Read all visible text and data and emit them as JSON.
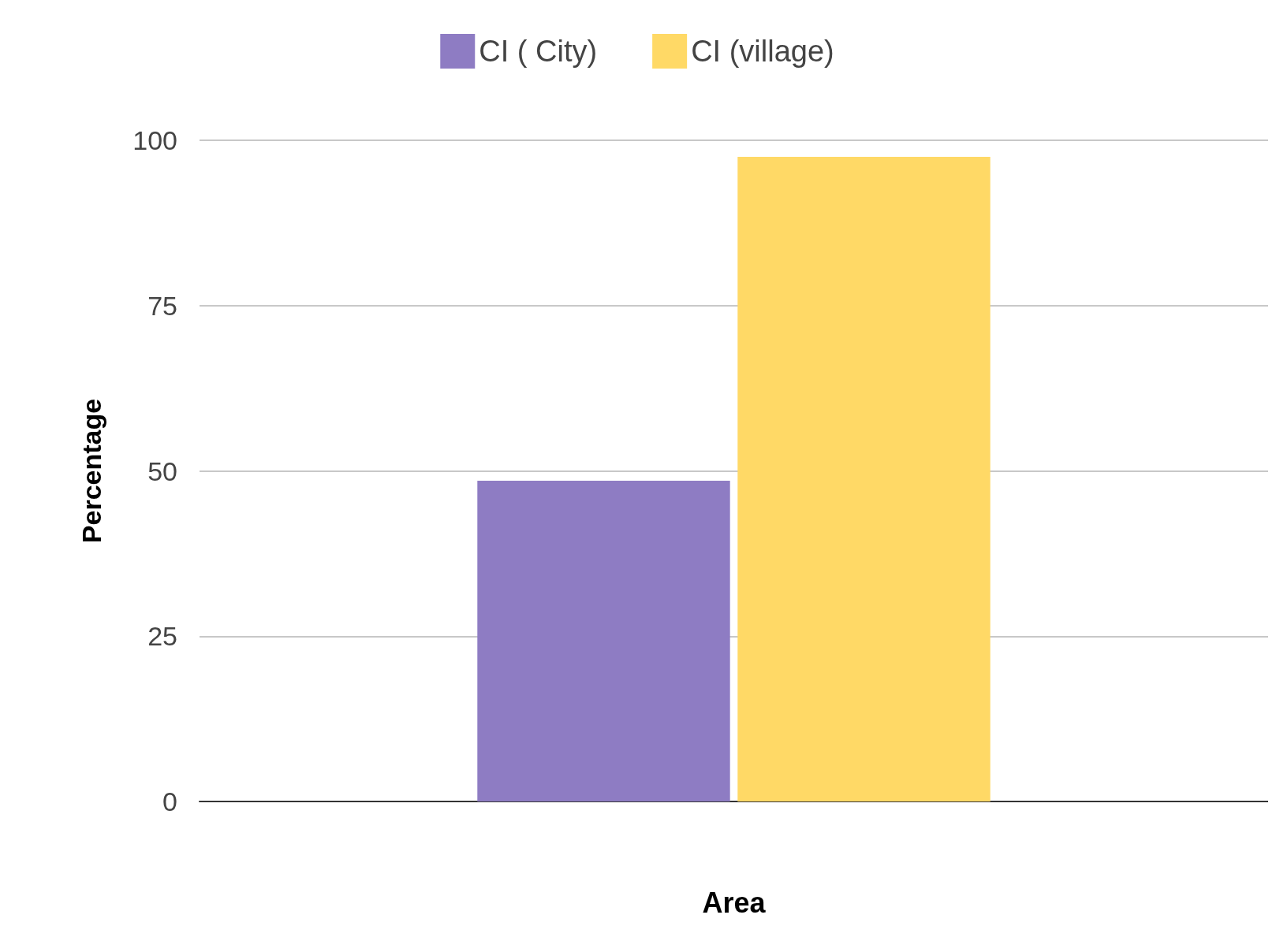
{
  "chart_data": {
    "type": "bar",
    "xlabel": "Area",
    "ylabel": "Percentage",
    "categories": [
      null
    ],
    "series": [
      {
        "name": "CI ( City)",
        "color": "#8e7cc3",
        "values": [
          48.5
        ]
      },
      {
        "name": "CI (village)",
        "color": "#ffd966",
        "values": [
          97.5
        ]
      }
    ],
    "ylim": [
      0,
      100
    ],
    "yticks": [
      0,
      25,
      50,
      75,
      100
    ],
    "grid": "y",
    "legend": "top"
  }
}
